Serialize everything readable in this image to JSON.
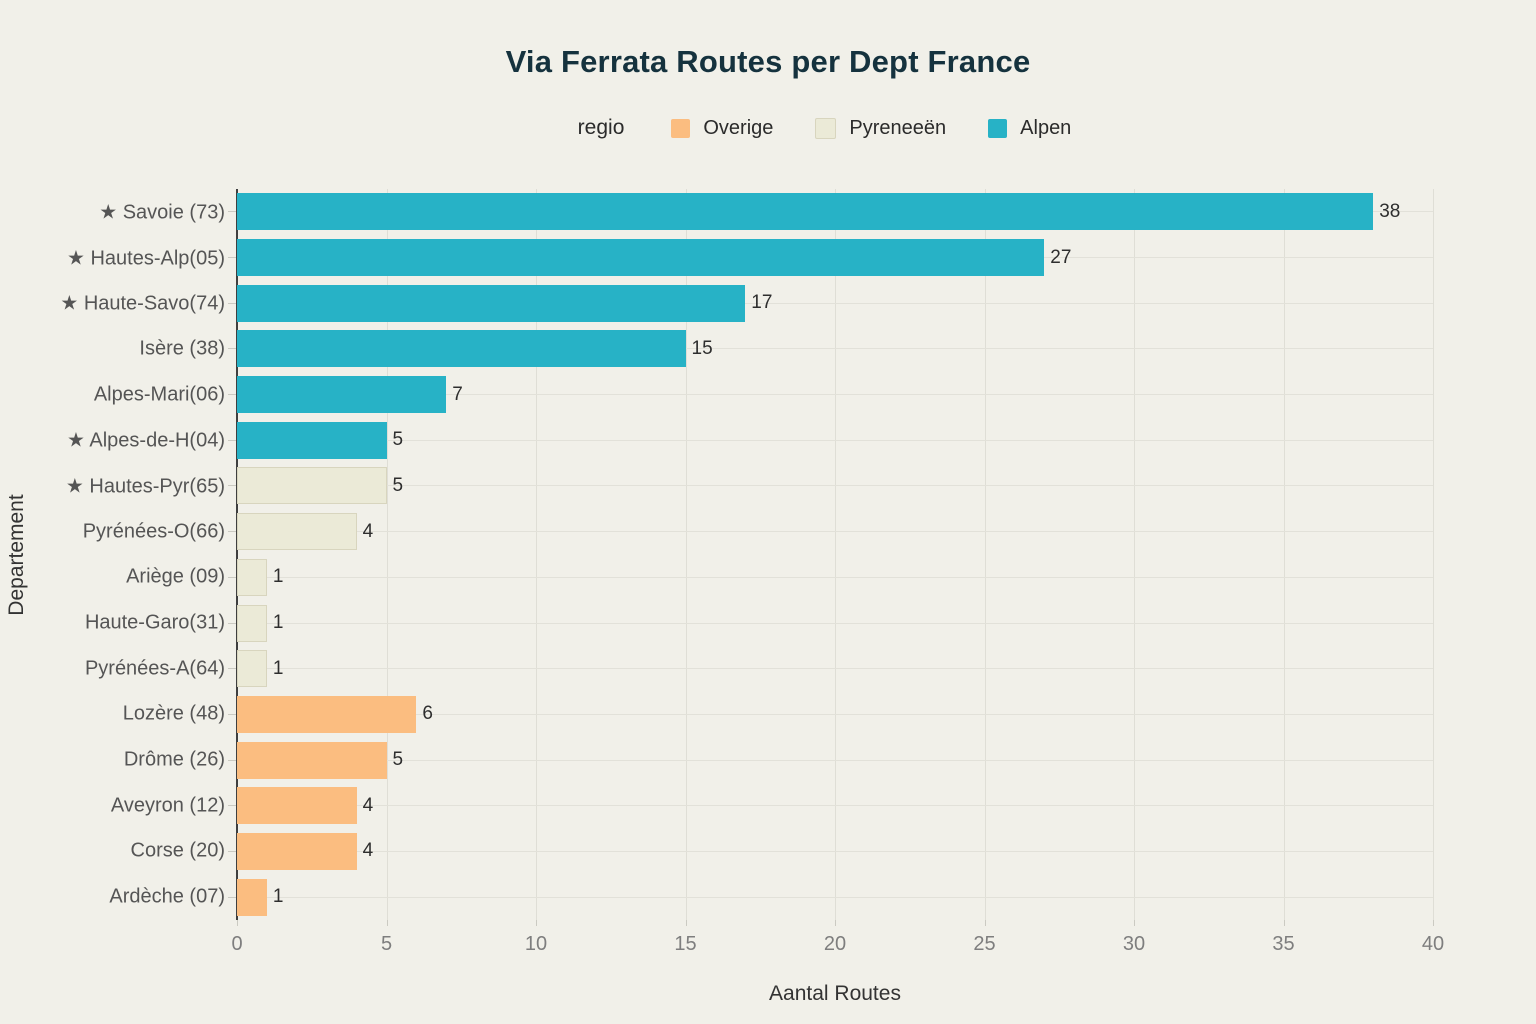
{
  "title": "Via Ferrata Routes per Dept France",
  "legend": {
    "title": "regio",
    "items": [
      {
        "label": "Overige",
        "color": "#FBBD80",
        "border": "none"
      },
      {
        "label": "Pyreneeën",
        "color": "#EBEAD7",
        "border": "#D8D5BE"
      },
      {
        "label": "Alpen",
        "color": "#27B2C6",
        "border": "none"
      }
    ]
  },
  "chart_data": {
    "type": "bar",
    "orientation": "horizontal",
    "title": "Via Ferrata Routes per Dept France",
    "xlabel": "Aantal Routes",
    "ylabel": "Departement",
    "xlim": [
      0,
      40
    ],
    "xticks": [
      0,
      5,
      10,
      15,
      20,
      25,
      30,
      35,
      40
    ],
    "grid": true,
    "legend_position": "top-center",
    "bars": [
      {
        "label": "★ Savoie (73)",
        "value": 38,
        "region": "Alpen"
      },
      {
        "label": "★ Hautes-Alp(05)",
        "value": 27,
        "region": "Alpen"
      },
      {
        "label": "★ Haute-Savo(74)",
        "value": 17,
        "region": "Alpen"
      },
      {
        "label": "Isère (38)",
        "value": 15,
        "region": "Alpen"
      },
      {
        "label": "Alpes-Mari(06)",
        "value": 7,
        "region": "Alpen"
      },
      {
        "label": "★ Alpes-de-H(04)",
        "value": 5,
        "region": "Alpen"
      },
      {
        "label": "★ Hautes-Pyr(65)",
        "value": 5,
        "region": "Pyreneeën"
      },
      {
        "label": "Pyrénées-O(66)",
        "value": 4,
        "region": "Pyreneeën"
      },
      {
        "label": "Ariège (09)",
        "value": 1,
        "region": "Pyreneeën"
      },
      {
        "label": "Haute-Garo(31)",
        "value": 1,
        "region": "Pyreneeën"
      },
      {
        "label": "Pyrénées-A(64)",
        "value": 1,
        "region": "Pyreneeën"
      },
      {
        "label": "Lozère (48)",
        "value": 6,
        "region": "Overige"
      },
      {
        "label": "Drôme (26)",
        "value": 5,
        "region": "Overige"
      },
      {
        "label": "Aveyron (12)",
        "value": 4,
        "region": "Overige"
      },
      {
        "label": "Corse (20)",
        "value": 4,
        "region": "Overige"
      },
      {
        "label": "Ardèche (07)",
        "value": 1,
        "region": "Overige"
      }
    ]
  },
  "colors": {
    "background": "#F1F0E9",
    "title_text": "#15323E",
    "axis_line": "#3F3F3F",
    "grid_line": "#DFDED6",
    "tick_text": "#7E7E7E",
    "category_text": "#555555",
    "value_text": "#2E2E2E"
  }
}
